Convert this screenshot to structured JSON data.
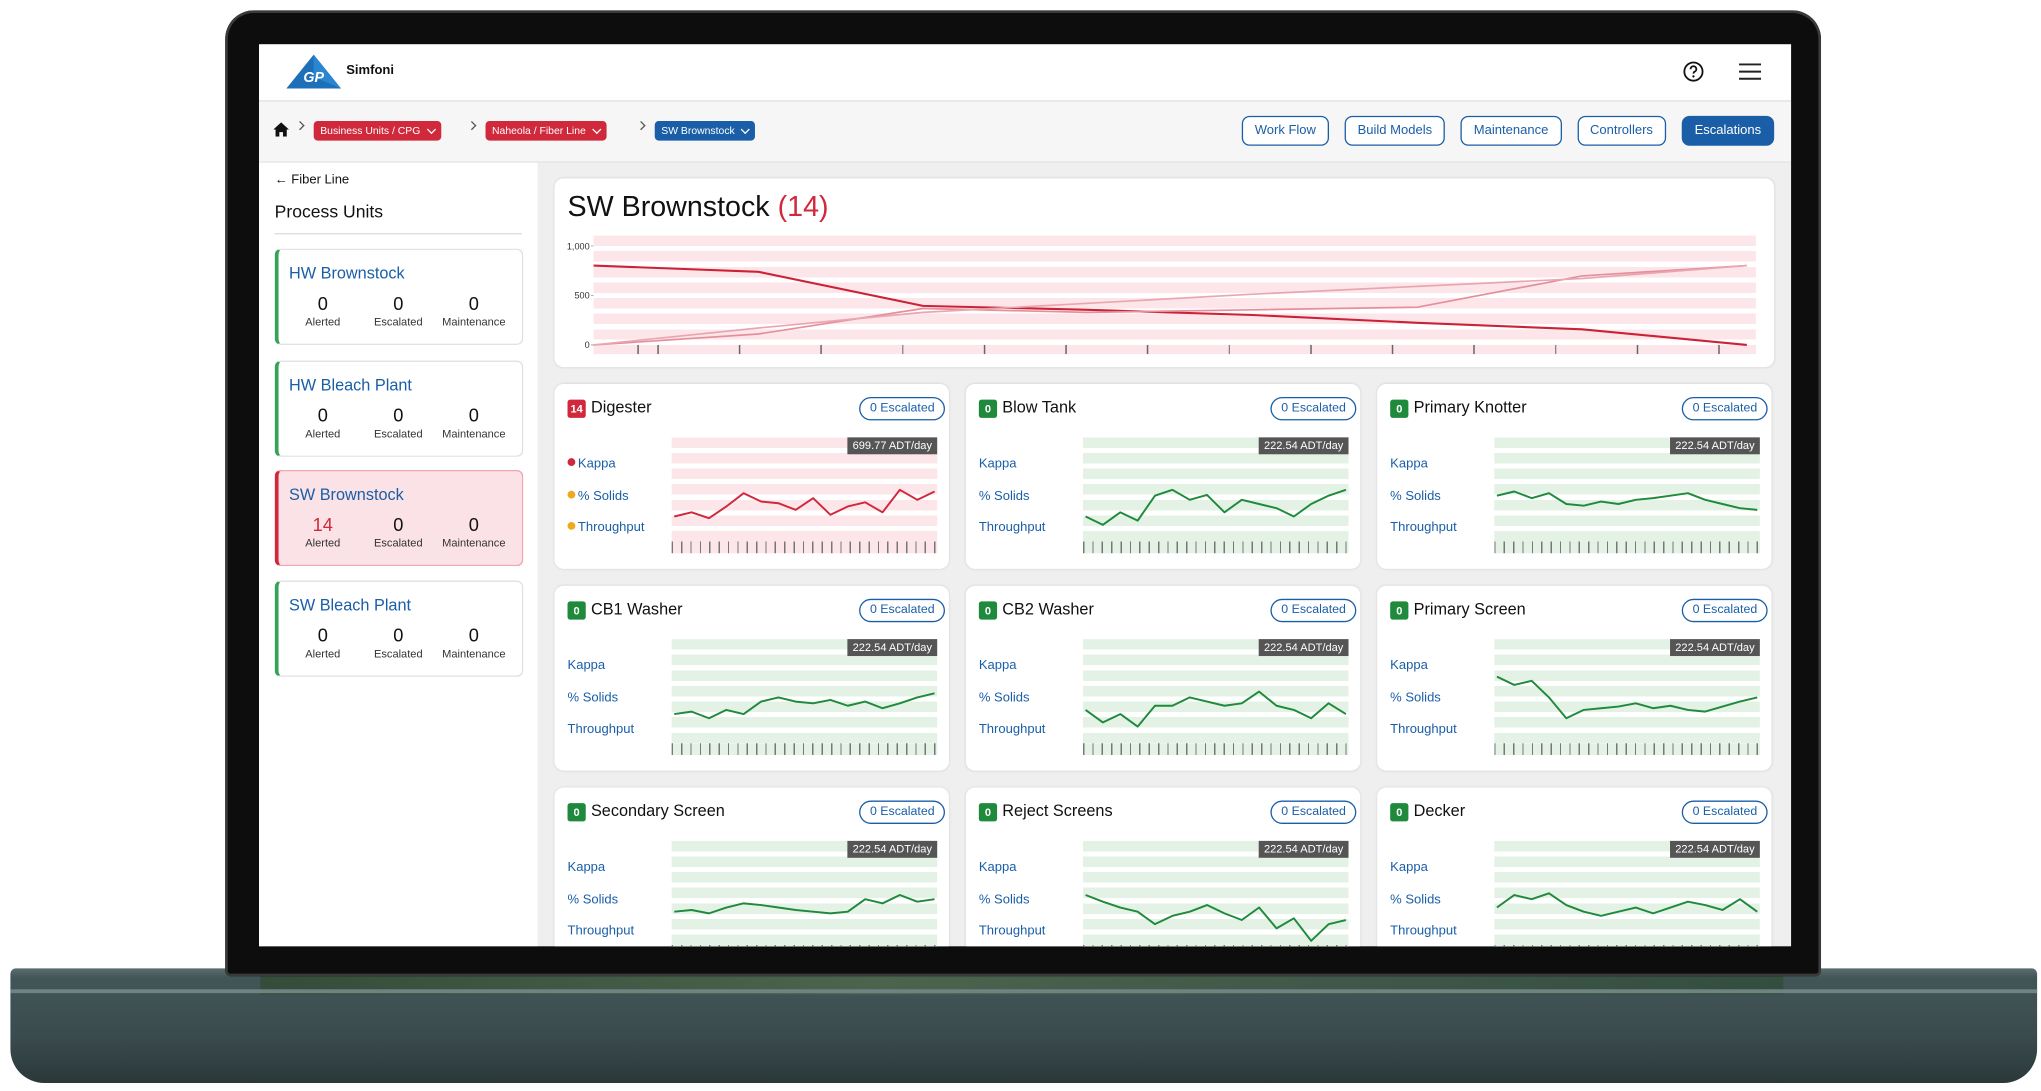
{
  "header": {
    "logo_text": "GP",
    "app_name": "Simfoni"
  },
  "breadcrumbs": [
    "Business Units / CPG",
    "Naheola / Fiber Line",
    "SW Brownstock"
  ],
  "nav_buttons": [
    "Work Flow",
    "Build Models",
    "Maintenance",
    "Controllers",
    "Escalations"
  ],
  "sidebar": {
    "back_link": "Fiber Line",
    "title": "Process Units",
    "stat_labels": [
      "Alerted",
      "Escalated",
      "Maintenance"
    ],
    "units": [
      {
        "name": "HW Brownstock",
        "alerted": 0,
        "escalated": 0,
        "maintenance": 0
      },
      {
        "name": "HW Bleach Plant",
        "alerted": 0,
        "escalated": 0,
        "maintenance": 0
      },
      {
        "name": "SW Brownstock",
        "alerted": 14,
        "escalated": 0,
        "maintenance": 0
      },
      {
        "name": "SW Bleach Plant",
        "alerted": 0,
        "escalated": 0,
        "maintenance": 0
      }
    ]
  },
  "overview": {
    "title": "SW Brownstock",
    "count": 14
  },
  "chart_data": {
    "type": "line",
    "ylim": [
      0,
      1000
    ],
    "yticks": [
      0,
      500,
      {
        "value": 1000,
        "label": "1,000"
      }
    ],
    "series": [
      {
        "color": "#cc2236",
        "values": [
          803,
          740,
          395,
          355,
          303,
          224,
          158,
          0
        ]
      },
      {
        "color": "#e58f9b",
        "values": [
          0,
          110,
          368,
          329,
          355,
          382,
          697,
          803
        ]
      },
      {
        "color": "#eaa6b0",
        "values": [
          0,
          171,
          329,
          421,
          513,
          592,
          671,
          803
        ]
      }
    ]
  },
  "metric_labels": [
    "Kappa",
    "% Solids",
    "Throughput"
  ],
  "cards": [
    {
      "name": "Digester",
      "alerts": 14,
      "escalated_label": "0 Escalated",
      "rate_label": "699.77 ADT/day",
      "metric_dots": [
        "#d0293b",
        "#f0a81c",
        "#f0a81c"
      ],
      "chart_data": {
        "type": "line",
        "ylim": [
          0,
          100
        ],
        "color": "#d0293b",
        "values": [
          30,
          35,
          28,
          42,
          58,
          48,
          46,
          38,
          52,
          32,
          42,
          47,
          35,
          62,
          50,
          60
        ]
      }
    },
    {
      "name": "Blow Tank",
      "alerts": 0,
      "escalated_label": "0 Escalated",
      "rate_label": "222.54 ADT/day",
      "chart_data": {
        "type": "line",
        "ylim": [
          0,
          100
        ],
        "color": "#1f8a3c",
        "values": [
          30,
          20,
          35,
          25,
          55,
          62,
          50,
          56,
          35,
          50,
          45,
          40,
          30,
          45,
          55,
          62
        ]
      }
    },
    {
      "name": "Primary Knotter",
      "alerts": 0,
      "escalated_label": "0 Escalated",
      "rate_label": "222.54 ADT/day",
      "chart_data": {
        "type": "line",
        "ylim": [
          0,
          100
        ],
        "color": "#1f8a3c",
        "values": [
          55,
          60,
          52,
          58,
          45,
          43,
          48,
          45,
          50,
          52,
          55,
          58,
          50,
          45,
          40,
          38
        ]
      }
    },
    {
      "name": "CB1 Washer",
      "alerts": 0,
      "escalated_label": "0 Escalated",
      "rate_label": "222.54 ADT/day",
      "chart_data": {
        "type": "line",
        "ylim": [
          0,
          100
        ],
        "color": "#1f8a3c",
        "values": [
          35,
          38,
          30,
          40,
          35,
          50,
          55,
          50,
          48,
          52,
          45,
          50,
          42,
          48,
          55,
          60
        ]
      }
    },
    {
      "name": "CB2 Washer",
      "alerts": 0,
      "escalated_label": "0 Escalated",
      "rate_label": "222.54 ADT/day",
      "chart_data": {
        "type": "line",
        "ylim": [
          0,
          100
        ],
        "color": "#1f8a3c",
        "values": [
          40,
          25,
          35,
          20,
          45,
          45,
          55,
          50,
          45,
          48,
          62,
          45,
          40,
          30,
          48,
          35
        ]
      }
    },
    {
      "name": "Primary Screen",
      "alerts": 0,
      "escalated_label": "0 Escalated",
      "rate_label": "222.54 ADT/day",
      "chart_data": {
        "type": "line",
        "ylim": [
          0,
          100
        ],
        "color": "#1f8a3c",
        "values": [
          80,
          70,
          75,
          55,
          30,
          40,
          42,
          44,
          48,
          42,
          45,
          40,
          38,
          44,
          50,
          55
        ]
      }
    },
    {
      "name": "Secondary Screen",
      "alerts": 0,
      "escalated_label": "0 Escalated",
      "rate_label": "222.54 ADT/day",
      "chart_data": {
        "type": "line",
        "ylim": [
          0,
          100
        ],
        "color": "#1f8a3c",
        "values": [
          40,
          42,
          38,
          45,
          50,
          48,
          45,
          42,
          40,
          38,
          40,
          55,
          50,
          60,
          52,
          55
        ]
      }
    },
    {
      "name": "Reject Screens",
      "alerts": 0,
      "escalated_label": "0 Escalated",
      "rate_label": "222.54 ADT/day",
      "chart_data": {
        "type": "line",
        "ylim": [
          0,
          100
        ],
        "color": "#1f8a3c",
        "values": [
          60,
          52,
          45,
          40,
          25,
          35,
          40,
          48,
          38,
          30,
          45,
          20,
          32,
          5,
          25,
          30
        ]
      }
    },
    {
      "name": "Decker",
      "alerts": 0,
      "escalated_label": "0 Escalated",
      "rate_label": "222.54 ADT/day",
      "chart_data": {
        "type": "line",
        "ylim": [
          0,
          100
        ],
        "color": "#1f8a3c",
        "values": [
          45,
          60,
          55,
          62,
          48,
          40,
          35,
          40,
          45,
          38,
          45,
          52,
          48,
          42,
          55,
          40
        ]
      }
    }
  ]
}
